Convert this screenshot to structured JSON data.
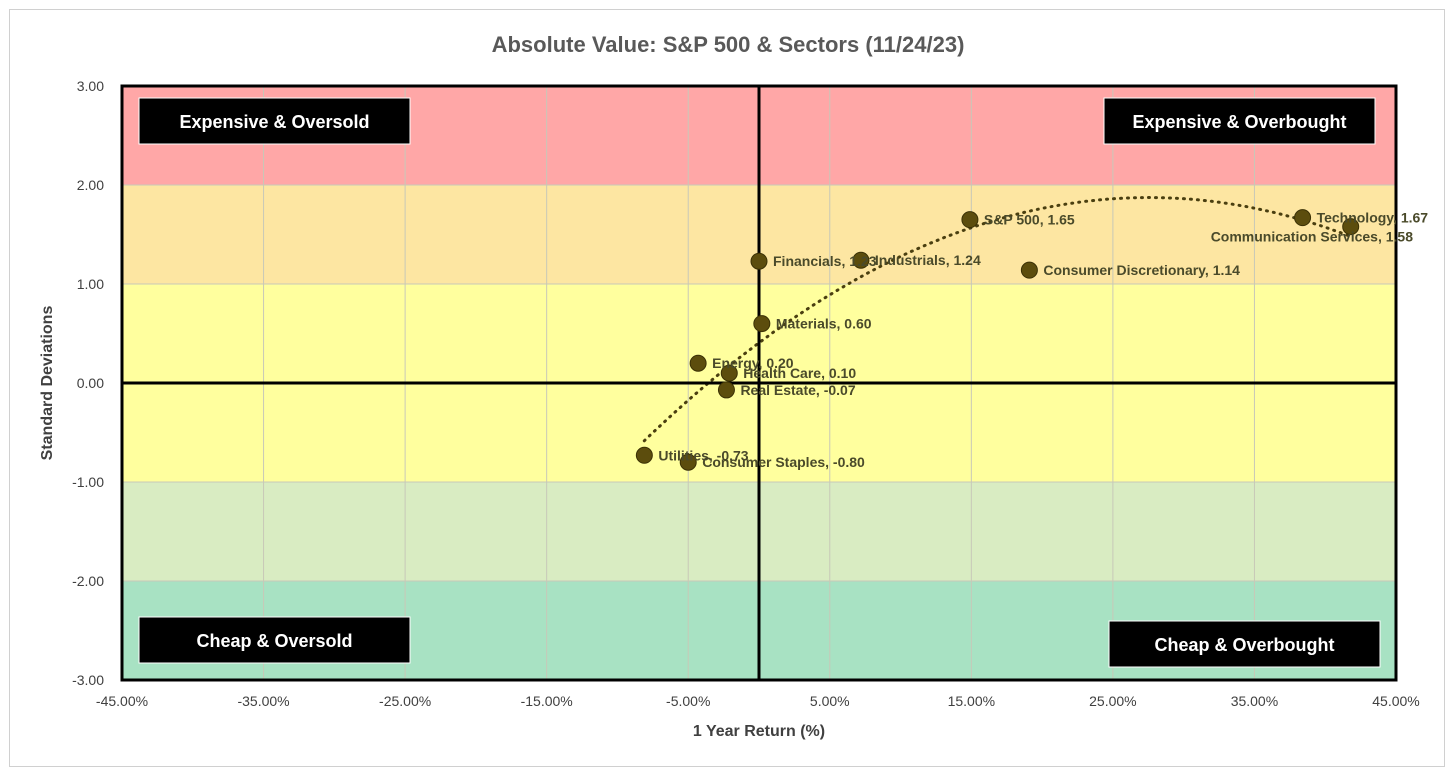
{
  "chart_data": {
    "type": "scatter",
    "title": "Absolute Value: S&P 500 & Sectors (11/24/23)",
    "xlabel": "1 Year Return (%)",
    "ylabel": "Standard Deviations",
    "xlim": [
      -0.45,
      0.45
    ],
    "ylim": [
      -3,
      3
    ],
    "x_ticks": [
      -0.45,
      -0.35,
      -0.25,
      -0.15,
      -0.05,
      0.05,
      0.15,
      0.25,
      0.35,
      0.45
    ],
    "x_tick_labels": [
      "-45.00%",
      "-35.00%",
      "-25.00%",
      "-15.00%",
      "-5.00%",
      "5.00%",
      "15.00%",
      "25.00%",
      "35.00%",
      "45.00%"
    ],
    "y_ticks": [
      3,
      2,
      1,
      0,
      -1,
      -2,
      -3
    ],
    "y_tick_labels": [
      "3.00",
      "2.00",
      "1.00",
      "0.00",
      "-1.00",
      "-2.00",
      "-3.00"
    ],
    "grid": true,
    "bands": [
      {
        "from": 2,
        "to": 3,
        "color": "#ffa7a7"
      },
      {
        "from": 1,
        "to": 2,
        "color": "#fde6a2"
      },
      {
        "from": -1,
        "to": 1,
        "color": "#ffff9e"
      },
      {
        "from": -2,
        "to": -1,
        "color": "#d9ecc2"
      },
      {
        "from": -3,
        "to": -2,
        "color": "#a8e2c3"
      }
    ],
    "quadrant_labels": [
      {
        "text": "Expensive & Oversold",
        "position": "top-left"
      },
      {
        "text": "Expensive & Overbought",
        "position": "top-right"
      },
      {
        "text": "Cheap & Oversold",
        "position": "bottom-left"
      },
      {
        "text": "Cheap & Overbought",
        "position": "bottom-right"
      }
    ],
    "marker_color": "#5c4d0d",
    "trendline": "polynomial",
    "points": [
      {
        "name": "Technology",
        "x": 0.384,
        "y": 1.67,
        "label": "Technology, 1.67"
      },
      {
        "name": "Communication Services",
        "x": 0.418,
        "y": 1.58,
        "label": "Communication Services, 1.58"
      },
      {
        "name": "S&P 500",
        "x": 0.149,
        "y": 1.65,
        "label": "S&P 500, 1.65"
      },
      {
        "name": "Financials",
        "x": 0.0,
        "y": 1.23,
        "label": "Financials, 1.23"
      },
      {
        "name": "Industrials",
        "x": 0.072,
        "y": 1.24,
        "label": "Industrials, 1.24"
      },
      {
        "name": "Consumer Discretionary",
        "x": 0.191,
        "y": 1.14,
        "label": "Consumer Discretionary, 1.14"
      },
      {
        "name": "Materials",
        "x": 0.002,
        "y": 0.6,
        "label": "Materials, 0.60"
      },
      {
        "name": "Energy",
        "x": -0.043,
        "y": 0.2,
        "label": "Energy, 0.20"
      },
      {
        "name": "Health Care",
        "x": -0.021,
        "y": 0.1,
        "label": "Health Care, 0.10"
      },
      {
        "name": "Real Estate",
        "x": -0.023,
        "y": -0.07,
        "label": "Real Estate, -0.07"
      },
      {
        "name": "Utilities",
        "x": -0.081,
        "y": -0.73,
        "label": "Utilities, -0.73"
      },
      {
        "name": "Consumer Staples",
        "x": -0.05,
        "y": -0.8,
        "label": "Consumer Staples, -0.80"
      }
    ]
  }
}
